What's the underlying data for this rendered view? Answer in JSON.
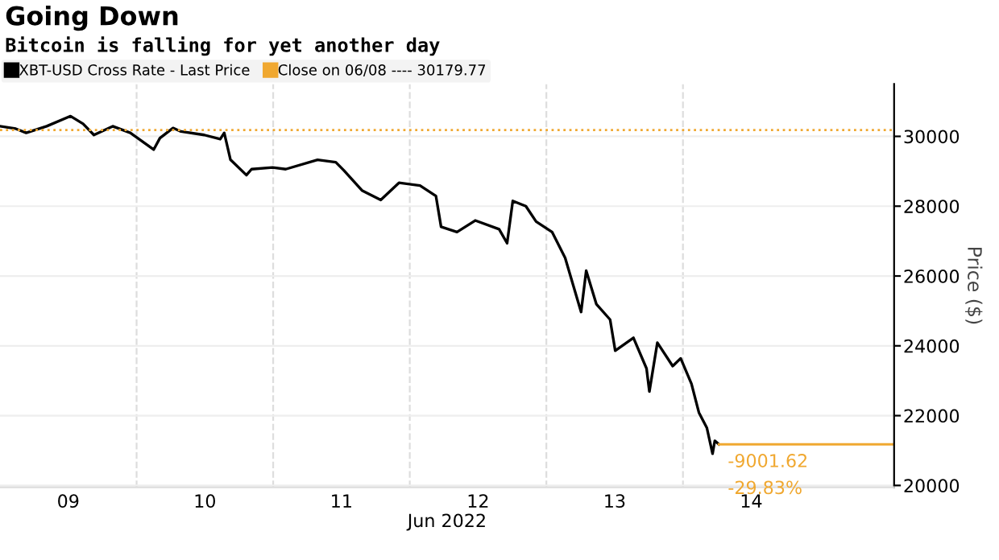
{
  "chart_data": {
    "type": "line",
    "title": "Going Down",
    "subtitle": "Bitcoin is falling for yet another day",
    "xlabel": "Jun 2022",
    "ylabel": "Price ($)",
    "series": [
      {
        "name": "XBT-USD Cross Rate - Last Price",
        "color": "#000000",
        "x": [
          "2022-06-09T00:00",
          "2022-06-09T02:46",
          "2022-06-09T04:36",
          "2022-06-09T08:12",
          "2022-06-09T12:24",
          "2022-06-09T14:36",
          "2022-06-09T16:30",
          "2022-06-09T19:48",
          "2022-06-09T22:54",
          "2022-06-10T03:00",
          "2022-06-10T04:06",
          "2022-06-10T06:24",
          "2022-06-10T07:48",
          "2022-06-10T11:54",
          "2022-06-10T14:42",
          "2022-06-10T15:24",
          "2022-06-10T16:30",
          "2022-06-10T19:18",
          "2022-06-10T20:12",
          "2022-06-10T23:54",
          "2022-06-11T02:12",
          "2022-06-11T07:48",
          "2022-06-11T11:00",
          "2022-06-11T12:24",
          "2022-06-11T15:36",
          "2022-06-11T18:54",
          "2022-06-11T22:06",
          "2022-06-12T01:48",
          "2022-06-12T04:36",
          "2022-06-12T05:30",
          "2022-06-12T08:18",
          "2022-06-12T11:30",
          "2022-06-12T15:42",
          "2022-06-12T17:06",
          "2022-06-12T18:06",
          "2022-06-12T20:24",
          "2022-06-12T22:12",
          "2022-06-13T01:00",
          "2022-06-13T03:18",
          "2022-06-13T06:06",
          "2022-06-13T07:00",
          "2022-06-13T08:48",
          "2022-06-13T11:12",
          "2022-06-13T12:06",
          "2022-06-13T15:18",
          "2022-06-13T17:36",
          "2022-06-13T18:06",
          "2022-06-13T19:30",
          "2022-06-13T22:12",
          "2022-06-13T23:36",
          "2022-06-14T01:30",
          "2022-06-14T02:48",
          "2022-06-14T04:12",
          "2022-06-14T05:12",
          "2022-06-14T05:36",
          "2022-06-14T06:18"
        ],
        "values": [
          30290,
          30220,
          30100,
          30290,
          30580,
          30360,
          30040,
          30290,
          30100,
          29620,
          29950,
          30240,
          30140,
          30040,
          29920,
          30100,
          29330,
          28890,
          29060,
          29110,
          29060,
          29330,
          29260,
          29030,
          28450,
          28180,
          28670,
          28590,
          28290,
          27410,
          27260,
          27590,
          27340,
          26940,
          28150,
          28000,
          27560,
          27260,
          26520,
          24970,
          26150,
          25190,
          24750,
          23860,
          24230,
          23350,
          22690,
          24090,
          23420,
          23640,
          22910,
          22090,
          21650,
          20910,
          21280,
          21178
        ]
      }
    ],
    "xlim": [
      "2022-06-09T00:00",
      "2022-06-15T13:06"
    ],
    "xticks": [
      {
        "value": "2022-06-09T12:00",
        "label": "09"
      },
      {
        "value": "2022-06-10T12:00",
        "label": "10"
      },
      {
        "value": "2022-06-11T12:00",
        "label": "11"
      },
      {
        "value": "2022-06-12T12:00",
        "label": "12"
      },
      {
        "value": "2022-06-13T12:00",
        "label": "13"
      },
      {
        "value": "2022-06-14T12:00",
        "label": "14"
      },
      {
        "value": "2022-06-10T00:00",
        "label": null
      },
      {
        "value": "2022-06-11T00:00",
        "label": null
      },
      {
        "value": "2022-06-12T00:00",
        "label": null
      },
      {
        "value": "2022-06-13T00:00",
        "label": null
      },
      {
        "value": "2022-06-14T00:00",
        "label": null
      }
    ],
    "ylim": [
      19950,
      31500
    ],
    "yticks": [
      20000,
      22000,
      24000,
      26000,
      28000,
      30000
    ],
    "grid": true,
    "legend": "top left",
    "ref_lines": [
      {
        "axis": "y",
        "value": 30179.77,
        "label": "Close on 06/08 ---- 30179.77",
        "color": "#f0a830",
        "line_style": "dotted"
      }
    ],
    "annotations": [
      {
        "text": "-9001.62",
        "x": "2022-06-14T06:18",
        "y": 21178
      },
      {
        "text": "-29.83%",
        "x": "2022-06-14T06:18",
        "y": 21178
      }
    ]
  }
}
